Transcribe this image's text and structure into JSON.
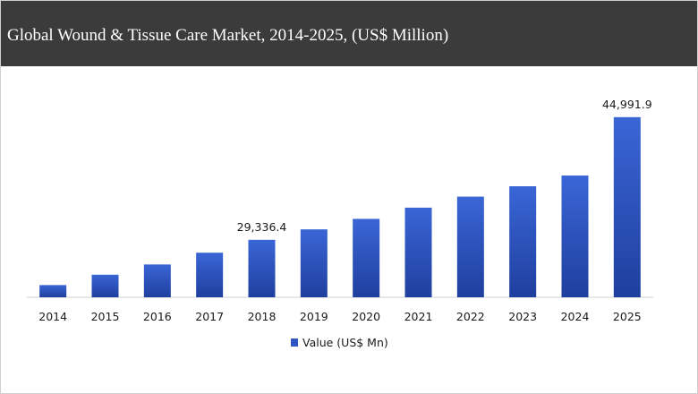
{
  "header": {
    "title": "Global Wound & Tissue Care Market, 2014-2025, (US$ Million)"
  },
  "chart_data": {
    "type": "bar",
    "title": "Global Wound & Tissue Care Market, 2014-2025, (US$ Million)",
    "categories": [
      "2014",
      "2015",
      "2016",
      "2017",
      "2018",
      "2019",
      "2020",
      "2021",
      "2022",
      "2023",
      "2024",
      "2025"
    ],
    "series": [
      {
        "name": "Value (US$ Mn)",
        "color": "#2f56c2",
        "values": [
          23560,
          24880,
          26190,
          27690,
          29336.4,
          30670,
          32010,
          33440,
          34850,
          36170,
          37540,
          44991.9
        ],
        "data_labels": [
          "",
          "",
          "",
          "",
          "29,336.4",
          "",
          "",
          "",
          "",
          "",
          "",
          "44,991.9"
        ]
      }
    ],
    "ylim": [
      22000,
      46000
    ],
    "grid": false,
    "legend": "bottom",
    "xlabel": "",
    "ylabel": ""
  }
}
